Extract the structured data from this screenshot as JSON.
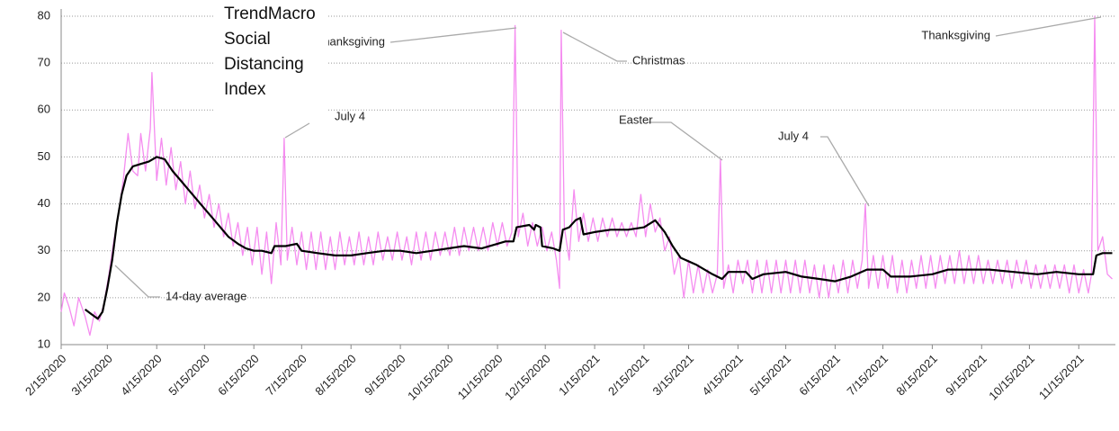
{
  "chart_data": {
    "type": "line",
    "title": "TrendMacro Social Distancing Index",
    "xlim": [
      "2020-02-15",
      "2021-12-08"
    ],
    "ylim": [
      10,
      80
    ],
    "yticks": [
      10,
      20,
      30,
      40,
      50,
      60,
      70,
      80
    ],
    "grid": true,
    "xticks": [
      {
        "value": "2020-02-15",
        "label": "2/15/2020"
      },
      {
        "value": "2020-03-15",
        "label": "3/15/2020"
      },
      {
        "value": "2020-04-15",
        "label": "4/15/2020"
      },
      {
        "value": "2020-05-15",
        "label": "5/15/2020"
      },
      {
        "value": "2020-06-15",
        "label": "6/15/2020"
      },
      {
        "value": "2020-07-15",
        "label": "7/15/2020"
      },
      {
        "value": "2020-08-15",
        "label": "8/15/2020"
      },
      {
        "value": "2020-09-15",
        "label": "9/15/2020"
      },
      {
        "value": "2020-10-15",
        "label": "10/15/2020"
      },
      {
        "value": "2020-11-15",
        "label": "11/15/2020"
      },
      {
        "value": "2020-12-15",
        "label": "12/15/2020"
      },
      {
        "value": "2021-01-15",
        "label": "1/15/2021"
      },
      {
        "value": "2021-02-15",
        "label": "2/15/2021"
      },
      {
        "value": "2021-03-15",
        "label": "3/15/2021"
      },
      {
        "value": "2021-04-15",
        "label": "4/15/2021"
      },
      {
        "value": "2021-05-15",
        "label": "5/15/2021"
      },
      {
        "value": "2021-06-15",
        "label": "6/15/2021"
      },
      {
        "value": "2021-07-15",
        "label": "7/15/2021"
      },
      {
        "value": "2021-08-15",
        "label": "8/15/2021"
      },
      {
        "value": "2021-09-15",
        "label": "9/15/2021"
      },
      {
        "value": "2021-10-15",
        "label": "10/15/2021"
      },
      {
        "value": "2021-11-15",
        "label": "11/15/2021"
      }
    ],
    "annotations": [
      "Thanksgiving",
      "Christmas",
      "July 4",
      "Easter",
      "July 4",
      "Thanksgiving",
      "14-day average"
    ],
    "series": [
      {
        "color": "#f58cf0",
        "width": 1.3,
        "x": [
          "2020-02-15",
          "2020-02-17",
          "2020-02-20",
          "2020-02-23",
          "2020-02-26",
          "2020-03-01",
          "2020-03-04",
          "2020-03-07",
          "2020-03-10",
          "2020-03-13",
          "2020-03-16",
          "2020-03-19",
          "2020-03-22",
          "2020-03-25",
          "2020-03-28",
          "2020-03-31",
          "2020-04-03",
          "2020-04-05",
          "2020-04-08",
          "2020-04-11",
          "2020-04-12",
          "2020-04-15",
          "2020-04-18",
          "2020-04-21",
          "2020-04-24",
          "2020-04-27",
          "2020-04-30",
          "2020-05-03",
          "2020-05-06",
          "2020-05-09",
          "2020-05-12",
          "2020-05-15",
          "2020-05-18",
          "2020-05-21",
          "2020-05-24",
          "2020-05-27",
          "2020-05-30",
          "2020-06-02",
          "2020-06-05",
          "2020-06-08",
          "2020-06-11",
          "2020-06-14",
          "2020-06-17",
          "2020-06-20",
          "2020-06-23",
          "2020-06-26",
          "2020-06-29",
          "2020-07-02",
          "2020-07-04",
          "2020-07-06",
          "2020-07-09",
          "2020-07-12",
          "2020-07-15",
          "2020-07-18",
          "2020-07-21",
          "2020-07-24",
          "2020-07-27",
          "2020-07-30",
          "2020-08-02",
          "2020-08-05",
          "2020-08-08",
          "2020-08-11",
          "2020-08-14",
          "2020-08-17",
          "2020-08-20",
          "2020-08-23",
          "2020-08-26",
          "2020-08-29",
          "2020-09-01",
          "2020-09-04",
          "2020-09-07",
          "2020-09-10",
          "2020-09-13",
          "2020-09-16",
          "2020-09-19",
          "2020-09-22",
          "2020-09-25",
          "2020-09-28",
          "2020-10-01",
          "2020-10-04",
          "2020-10-07",
          "2020-10-10",
          "2020-10-13",
          "2020-10-16",
          "2020-10-19",
          "2020-10-22",
          "2020-10-25",
          "2020-10-28",
          "2020-10-31",
          "2020-11-03",
          "2020-11-06",
          "2020-11-09",
          "2020-11-12",
          "2020-11-15",
          "2020-11-18",
          "2020-11-21",
          "2020-11-24",
          "2020-11-26",
          "2020-11-28",
          "2020-12-01",
          "2020-12-04",
          "2020-12-07",
          "2020-12-10",
          "2020-12-13",
          "2020-12-16",
          "2020-12-19",
          "2020-12-22",
          "2020-12-24",
          "2020-12-25",
          "2020-12-27",
          "2020-12-30",
          "2021-01-02",
          "2021-01-05",
          "2021-01-08",
          "2021-01-11",
          "2021-01-14",
          "2021-01-17",
          "2021-01-20",
          "2021-01-23",
          "2021-01-26",
          "2021-01-29",
          "2021-02-01",
          "2021-02-04",
          "2021-02-07",
          "2021-02-10",
          "2021-02-13",
          "2021-02-16",
          "2021-02-19",
          "2021-02-22",
          "2021-02-25",
          "2021-02-28",
          "2021-03-03",
          "2021-03-06",
          "2021-03-09",
          "2021-03-12",
          "2021-03-15",
          "2021-03-18",
          "2021-03-21",
          "2021-03-24",
          "2021-03-27",
          "2021-03-30",
          "2021-04-02",
          "2021-04-04",
          "2021-04-06",
          "2021-04-09",
          "2021-04-12",
          "2021-04-15",
          "2021-04-18",
          "2021-04-21",
          "2021-04-24",
          "2021-04-27",
          "2021-04-30",
          "2021-05-03",
          "2021-05-06",
          "2021-05-09",
          "2021-05-12",
          "2021-05-15",
          "2021-05-18",
          "2021-05-21",
          "2021-05-24",
          "2021-05-27",
          "2021-05-30",
          "2021-06-02",
          "2021-06-05",
          "2021-06-08",
          "2021-06-11",
          "2021-06-14",
          "2021-06-17",
          "2021-06-20",
          "2021-06-23",
          "2021-06-26",
          "2021-06-29",
          "2021-07-02",
          "2021-07-04",
          "2021-07-06",
          "2021-07-09",
          "2021-07-12",
          "2021-07-15",
          "2021-07-18",
          "2021-07-21",
          "2021-07-24",
          "2021-07-27",
          "2021-07-30",
          "2021-08-02",
          "2021-08-05",
          "2021-08-08",
          "2021-08-11",
          "2021-08-14",
          "2021-08-17",
          "2021-08-20",
          "2021-08-23",
          "2021-08-26",
          "2021-08-29",
          "2021-09-01",
          "2021-09-04",
          "2021-09-07",
          "2021-09-10",
          "2021-09-13",
          "2021-09-16",
          "2021-09-19",
          "2021-09-22",
          "2021-09-25",
          "2021-09-28",
          "2021-10-01",
          "2021-10-04",
          "2021-10-07",
          "2021-10-10",
          "2021-10-13",
          "2021-10-16",
          "2021-10-19",
          "2021-10-22",
          "2021-10-25",
          "2021-10-28",
          "2021-10-31",
          "2021-11-03",
          "2021-11-06",
          "2021-11-09",
          "2021-11-12",
          "2021-11-15",
          "2021-11-18",
          "2021-11-21",
          "2021-11-23",
          "2021-11-25",
          "2021-11-27",
          "2021-11-30",
          "2021-12-03",
          "2021-12-06"
        ],
        "values": [
          17,
          21,
          18,
          14,
          20,
          16,
          12,
          17,
          15,
          19,
          25,
          32,
          38,
          45,
          55,
          47,
          46,
          55,
          47,
          56,
          68,
          45,
          54,
          44,
          52,
          43,
          49,
          40,
          47,
          39,
          44,
          37,
          42,
          35,
          40,
          33,
          38,
          31,
          36,
          29,
          35,
          27,
          35,
          25,
          34,
          23,
          36,
          27,
          54,
          28,
          35,
          27,
          34,
          26,
          34,
          26,
          34,
          26,
          33,
          26,
          34,
          27,
          33,
          27,
          34,
          27,
          33,
          27,
          34,
          28,
          33,
          28,
          34,
          28,
          33,
          27,
          34,
          28,
          34,
          28,
          34,
          29,
          34,
          29,
          35,
          29,
          35,
          30,
          35,
          30,
          35,
          30,
          36,
          31,
          36,
          31,
          34,
          78,
          33,
          38,
          31,
          36,
          31,
          35,
          30,
          34,
          28,
          22,
          77,
          35,
          28,
          43,
          32,
          38,
          32,
          37,
          32,
          37,
          33,
          37,
          33,
          36,
          33,
          36,
          33,
          42,
          33,
          40,
          34,
          37,
          30,
          33,
          25,
          29,
          20,
          28,
          21,
          27,
          21,
          26,
          21,
          25,
          49.5,
          22,
          27,
          21,
          28,
          23,
          28,
          21,
          28,
          21,
          28,
          21,
          28,
          21,
          28,
          21,
          28,
          21,
          28,
          21,
          27,
          20,
          27,
          20,
          27,
          21,
          28,
          21,
          28,
          22,
          28,
          40,
          22,
          29,
          22,
          29,
          22,
          29,
          21,
          28,
          21,
          28,
          22,
          29,
          22,
          29,
          22,
          29,
          23,
          29,
          23,
          30,
          23,
          29,
          23,
          29,
          23,
          28,
          23,
          28,
          23,
          28,
          22,
          28,
          23,
          28,
          22,
          27,
          22,
          27,
          22,
          27,
          22,
          27,
          21,
          27,
          21,
          26,
          21,
          25,
          80,
          30,
          33,
          25,
          24
        ]
      },
      {
        "color": "#000000",
        "width": 2.2,
        "x": [
          "2020-03-01",
          "2020-03-05",
          "2020-03-09",
          "2020-03-12",
          "2020-03-15",
          "2020-03-18",
          "2020-03-21",
          "2020-03-24",
          "2020-03-27",
          "2020-03-31",
          "2020-04-05",
          "2020-04-10",
          "2020-04-15",
          "2020-04-20",
          "2020-04-25",
          "2020-04-30",
          "2020-05-05",
          "2020-05-10",
          "2020-05-15",
          "2020-05-20",
          "2020-05-25",
          "2020-05-30",
          "2020-06-05",
          "2020-06-10",
          "2020-06-15",
          "2020-06-20",
          "2020-06-26",
          "2020-06-28",
          "2020-07-05",
          "2020-07-12",
          "2020-07-15",
          "2020-07-25",
          "2020-08-05",
          "2020-08-15",
          "2020-08-25",
          "2020-09-05",
          "2020-09-15",
          "2020-09-25",
          "2020-10-05",
          "2020-10-15",
          "2020-10-25",
          "2020-11-05",
          "2020-11-15",
          "2020-11-20",
          "2020-11-25",
          "2020-11-27",
          "2020-12-05",
          "2020-12-08",
          "2020-12-09",
          "2020-12-12",
          "2020-12-13",
          "2020-12-20",
          "2020-12-24",
          "2020-12-26",
          "2020-12-30",
          "2021-01-03",
          "2021-01-06",
          "2021-01-08",
          "2021-01-15",
          "2021-01-25",
          "2021-02-05",
          "2021-02-15",
          "2021-02-22",
          "2021-02-28",
          "2021-03-05",
          "2021-03-10",
          "2021-03-20",
          "2021-03-30",
          "2021-04-05",
          "2021-04-09",
          "2021-04-20",
          "2021-04-24",
          "2021-05-01",
          "2021-05-15",
          "2021-05-25",
          "2021-06-05",
          "2021-06-15",
          "2021-06-25",
          "2021-07-05",
          "2021-07-15",
          "2021-07-20",
          "2021-08-01",
          "2021-08-15",
          "2021-08-25",
          "2021-09-05",
          "2021-09-20",
          "2021-10-05",
          "2021-10-20",
          "2021-11-01",
          "2021-11-15",
          "2021-11-24",
          "2021-11-26",
          "2021-11-30",
          "2021-12-06"
        ],
        "values": [
          17.5,
          16.5,
          15.5,
          17,
          22,
          28,
          36,
          42,
          46,
          48,
          48.5,
          49,
          50,
          49.5,
          47,
          45,
          43,
          41,
          39,
          37,
          35,
          33,
          31.5,
          30.5,
          30,
          30,
          29.5,
          31,
          31,
          31.5,
          30,
          29.5,
          29,
          29,
          29.5,
          30,
          30,
          29.5,
          30,
          30.5,
          31,
          30.5,
          31.5,
          32,
          32,
          35,
          35.5,
          34.5,
          35.5,
          35,
          31,
          30.5,
          30,
          34.5,
          35,
          36.5,
          37,
          33.5,
          34,
          34.5,
          34.5,
          35,
          36.5,
          34,
          31,
          28.5,
          27,
          25,
          24,
          25.5,
          25.5,
          24,
          25,
          25.5,
          24.5,
          24,
          23.5,
          24.5,
          26,
          26,
          24.5,
          24.5,
          25,
          26,
          26,
          26,
          25.5,
          25,
          25.5,
          25,
          25,
          29,
          29.5,
          29.5
        ]
      }
    ]
  }
}
